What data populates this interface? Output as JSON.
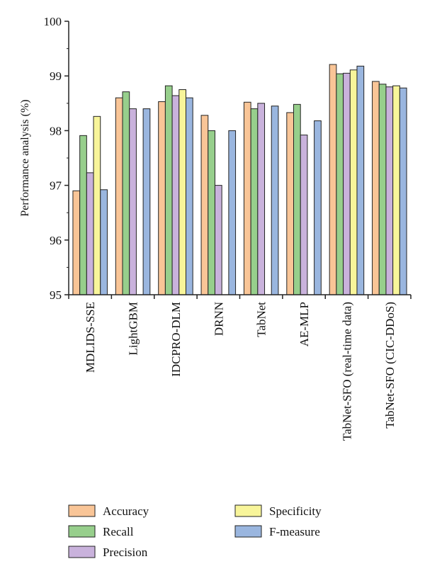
{
  "chart_data": {
    "type": "bar",
    "title": "",
    "xlabel": "",
    "ylabel": "Performance analysis (%)",
    "ylim": [
      95,
      100
    ],
    "yticks": [
      95,
      96,
      97,
      98,
      99,
      100
    ],
    "grid": false,
    "legend_position": "bottom",
    "categories": [
      "MDLIDS-SSE",
      "LightGBM",
      "IDCPRO-DLM",
      "DRNN",
      "TabNet",
      "AE-MLP",
      "TabNet-SFO (real-time data)",
      "TabNet-SFO (CIC-DDoS)"
    ],
    "series": [
      {
        "name": "Accuracy",
        "color": "#f9c597",
        "values": [
          96.9,
          98.6,
          98.53,
          98.28,
          98.52,
          98.33,
          99.21,
          98.9
        ]
      },
      {
        "name": "Recall",
        "color": "#97cf8c",
        "values": [
          97.91,
          98.71,
          98.82,
          98.0,
          98.4,
          98.48,
          99.04,
          98.85
        ]
      },
      {
        "name": "Precision",
        "color": "#c9b2dc",
        "values": [
          97.23,
          98.4,
          98.64,
          97.0,
          98.5,
          97.92,
          99.05,
          98.8
        ]
      },
      {
        "name": "Specificity",
        "color": "#f8f59a",
        "values": [
          98.26,
          null,
          98.75,
          null,
          null,
          null,
          99.11,
          98.82
        ]
      },
      {
        "name": "F-measure",
        "color": "#9ab6df",
        "values": [
          96.92,
          98.4,
          98.6,
          98.0,
          98.45,
          98.18,
          99.18,
          98.78
        ]
      }
    ]
  }
}
